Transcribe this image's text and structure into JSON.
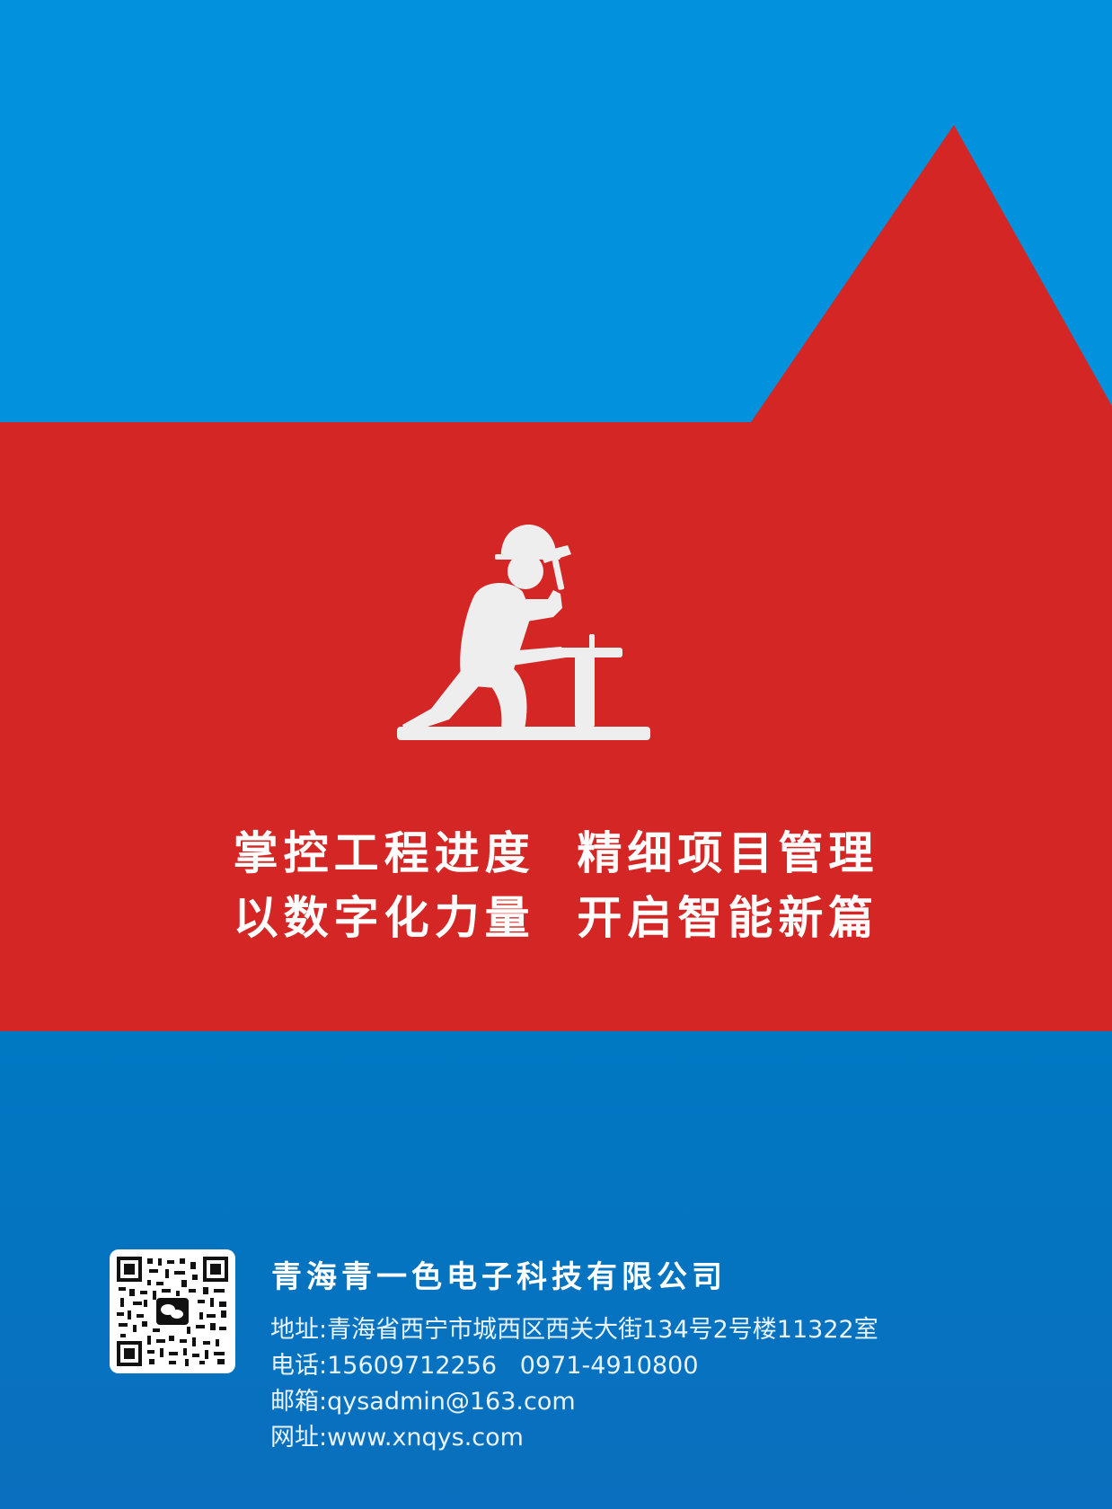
{
  "colors": {
    "top_blue": "#0291dc",
    "red": "#d42725",
    "bottom_blue": "#0078c2",
    "icon_gray": "#eeeeee",
    "text_white": "#ffffff"
  },
  "hero": {
    "icon": "construction-worker-hammer-icon",
    "slogan_line_1": "掌控工程进度  精细项目管理",
    "slogan_line_2": "以数字化力量  开启智能新篇"
  },
  "footer": {
    "qr_icon": "wechat-qr-code",
    "company_name": "青海青一色电子科技有限公司",
    "address": "地址:青海省西宁市城西区西关大街134号2号楼11322室",
    "phone": "电话:15609712256   0971-4910800",
    "email": "邮箱:qysadmin@163.com",
    "website": "网址:www.xnqys.com"
  }
}
